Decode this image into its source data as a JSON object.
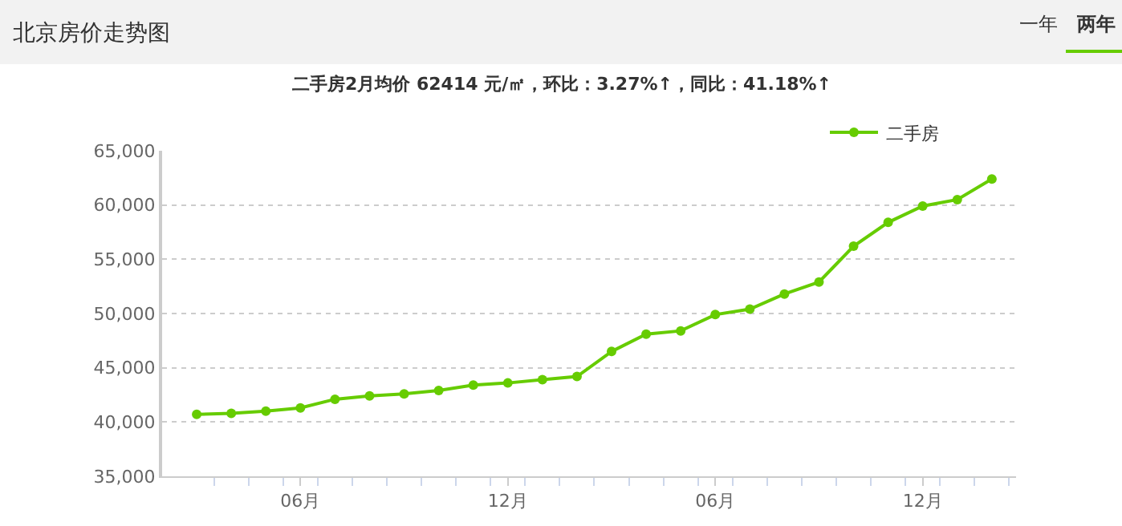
{
  "chart_data": {
    "type": "line",
    "title": "北京房价走势图",
    "subtitle": "二手房2月均价 62414 元/㎡，环比：3.27%↑，同比：41.18%↑",
    "annotations": [
      "一年",
      "两年"
    ],
    "categories": [
      null,
      null,
      null,
      "06月",
      null,
      null,
      null,
      null,
      null,
      "12月",
      null,
      null,
      null,
      null,
      null,
      "06月",
      null,
      null,
      null,
      null,
      null,
      "12月",
      null,
      null
    ],
    "series": [
      {
        "name": "二手房",
        "color": "#66cc00",
        "values": [
          40700,
          40800,
          41000,
          41300,
          42100,
          42400,
          42600,
          42900,
          43400,
          43600,
          43900,
          44200,
          46500,
          48100,
          48400,
          49900,
          50400,
          51800,
          52900,
          56200,
          58400,
          59900,
          60500,
          62400
        ]
      }
    ],
    "ylim": [
      35000,
      65000
    ],
    "yticks": [
      {
        "value": 35000,
        "label": "35,000"
      },
      {
        "value": 40000,
        "label": "40,000"
      },
      {
        "value": 45000,
        "label": "45,000"
      },
      {
        "value": 50000,
        "label": "50,000"
      },
      {
        "value": 55000,
        "label": "55,000"
      },
      {
        "value": 60000,
        "label": "60,000"
      },
      {
        "value": 65000,
        "label": "65,000"
      }
    ],
    "grid": "y",
    "legend": "top right",
    "marker": "circle",
    "line_style": "solid"
  }
}
